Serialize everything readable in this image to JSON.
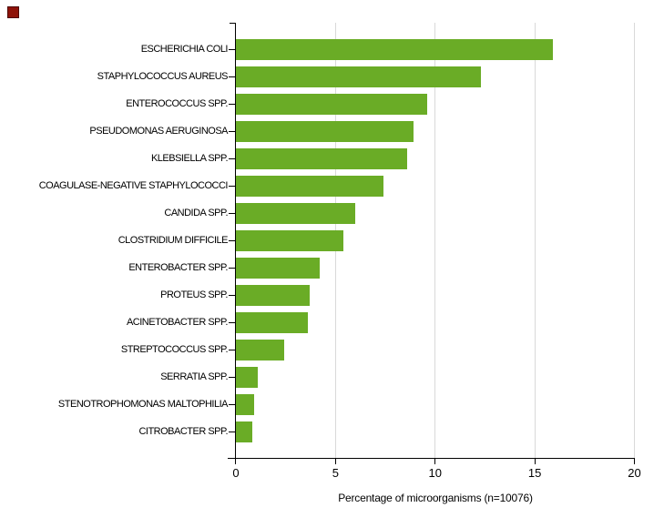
{
  "chart_data": {
    "type": "bar",
    "orientation": "horizontal",
    "title": "",
    "xlabel": "Percentage of microorganisms (n=10076)",
    "ylabel": "",
    "xlim": [
      0,
      20
    ],
    "x_ticks": [
      0,
      5,
      10,
      15,
      20
    ],
    "grid": "vertical-gridlines-at-x-ticks",
    "legend": "none",
    "categories": [
      "ESCHERICHIA COLI",
      "STAPHYLOCOCCUS AUREUS",
      "ENTEROCOCCUS SPP.",
      "PSEUDOMONAS AERUGINOSA",
      "KLEBSIELLA SPP.",
      "COAGULASE-NEGATIVE STAPHYLOCOCCI",
      "CANDIDA SPP.",
      "CLOSTRIDIUM DIFFICILE",
      "ENTEROBACTER SPP.",
      "PROTEUS SPP.",
      "ACINETOBACTER SPP.",
      "STREPTOCOCCUS SPP.",
      "SERRATIA SPP.",
      "STENOTROPHOMONAS MALTOPHILIA",
      "CITROBACTER SPP."
    ],
    "values": [
      15.9,
      12.3,
      9.6,
      8.9,
      8.6,
      7.4,
      6.0,
      5.4,
      4.2,
      3.7,
      3.6,
      2.4,
      1.1,
      0.9,
      0.8
    ]
  },
  "colors": {
    "bar": "#6aac26",
    "gridline": "#d9d9d9",
    "axis": "#000000",
    "text": "#000000",
    "background": "#ffffff",
    "corner_marker": "#8e1309"
  }
}
